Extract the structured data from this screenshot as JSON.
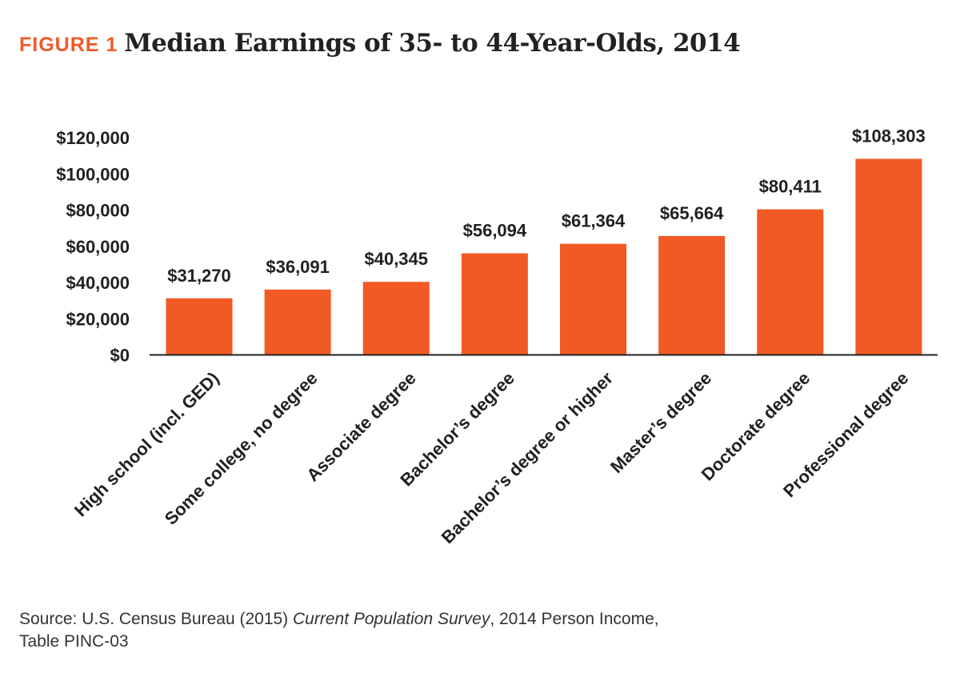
{
  "header": {
    "figure_label": "FIGURE 1",
    "title": "Median Earnings of 35- to 44-Year-Olds, 2014"
  },
  "colors": {
    "accent": "#F15A24",
    "text": "#231F20",
    "axis": "#231F20"
  },
  "chart_data": {
    "type": "bar",
    "title": "Median Earnings of 35- to 44-Year-Olds, 2014",
    "xlabel": "",
    "ylabel": "",
    "ylim": [
      0,
      120000
    ],
    "yticks": [
      0,
      20000,
      40000,
      60000,
      80000,
      100000,
      120000
    ],
    "ytick_labels": [
      "$0",
      "$20,000",
      "$40,000",
      "$60,000",
      "$80,000",
      "$100,000",
      "$120,000"
    ],
    "grid": false,
    "categories": [
      "High school (incl. GED)",
      "Some college, no degree",
      "Associate degree",
      "Bachelor’s degree",
      "Bachelor’s degree or higher",
      "Master’s degree",
      "Doctorate degree",
      "Professional degree"
    ],
    "values": [
      31270,
      36091,
      40345,
      56094,
      61364,
      65664,
      80411,
      108303
    ],
    "data_labels": [
      "$31,270",
      "$36,091",
      "$40,345",
      "$56,094",
      "$61,364",
      "$65,664",
      "$80,411",
      "$108,303"
    ]
  },
  "source": {
    "prefix": "Source: U.S. Census Bureau (2015) ",
    "survey": "Current Population Survey",
    "suffix": ", 2014 Person Income,",
    "line2": "Table PINC-03"
  }
}
